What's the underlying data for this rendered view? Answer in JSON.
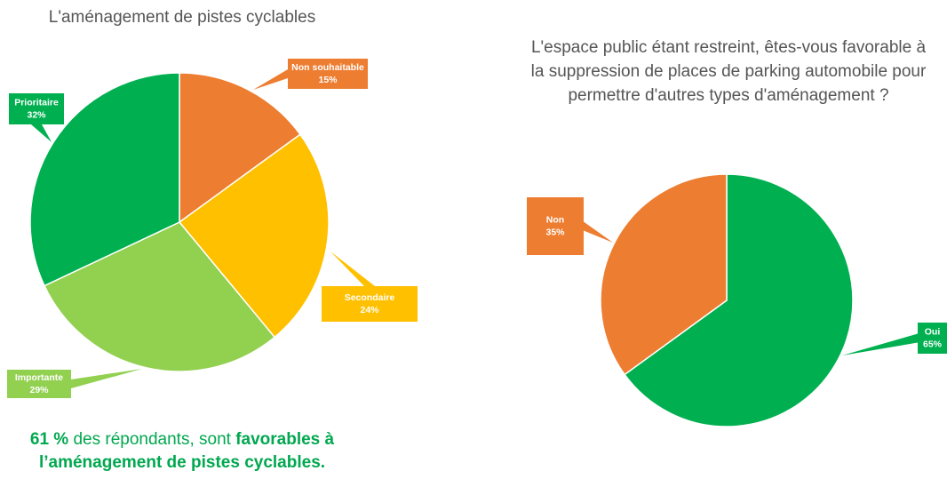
{
  "chart_data": [
    {
      "type": "pie",
      "title": "L'aménagement de pistes cyclables",
      "categories": [
        "Non souhaitable",
        "Secondaire",
        "Importante",
        "Prioritaire"
      ],
      "values": [
        15,
        24,
        29,
        32
      ],
      "value_labels": [
        "15%",
        "24%",
        "29%",
        "32%"
      ],
      "colors": [
        "#ED7D31",
        "#FFC000",
        "#92D050",
        "#00B050"
      ],
      "annotation": [
        "61 %",
        " des répondants, sont ",
        "favorables à l’aménagement de pistes cyclables."
      ]
    },
    {
      "type": "pie",
      "title": "L'espace public étant restreint, êtes-vous favorable à la suppression de places de parking automobile pour permettre d'autres types d'aménagement ?",
      "categories": [
        "Oui",
        "Non"
      ],
      "values": [
        65,
        35
      ],
      "value_labels": [
        "65%",
        "35%"
      ],
      "colors": [
        "#00B050",
        "#ED7D31"
      ]
    }
  ]
}
